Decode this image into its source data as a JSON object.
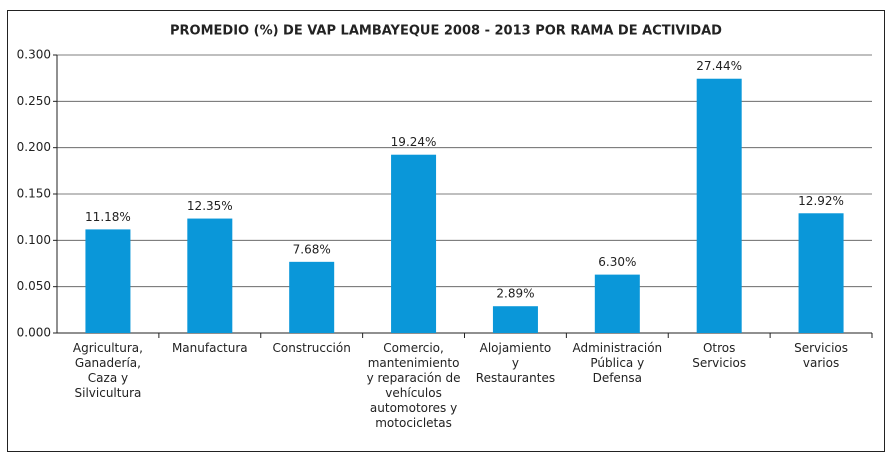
{
  "chart_data": {
    "type": "bar",
    "title": "PROMEDIO (%) DE VAP LAMBAYEQUE 2008 - 2013 POR RAMA DE ACTIVIDAD",
    "categories": [
      [
        "Agricultura,",
        "Ganadería,",
        "Caza y",
        "Silvicultura"
      ],
      [
        "Manufactura"
      ],
      [
        "Construcción"
      ],
      [
        "Comercio,",
        "mantenimiento",
        "y reparación de",
        "vehículos",
        "automotores y",
        "motocicletas"
      ],
      [
        "Alojamiento",
        "y",
        "Restaurantes"
      ],
      [
        "Administración",
        "Pública y",
        "Defensa"
      ],
      [
        "Otros",
        "Servicios"
      ],
      [
        "Servicios",
        "varios"
      ]
    ],
    "values": [
      0.1118,
      0.1235,
      0.0768,
      0.1924,
      0.0289,
      0.063,
      0.2744,
      0.1292
    ],
    "value_labels": [
      "11.18%",
      "12.35%",
      "7.68%",
      "19.24%",
      "2.89%",
      "6.30%",
      "27.44%",
      "12.92%"
    ],
    "color": "#0a97d9",
    "ylim": [
      0,
      0.3
    ],
    "yticks": [
      {
        "value": 0,
        "label": "0.000"
      },
      {
        "value": 0.05,
        "label": "0.050"
      },
      {
        "value": 0.1,
        "label": "0.100"
      },
      {
        "value": 0.15,
        "label": "0.150"
      },
      {
        "value": 0.2,
        "label": "0.200"
      },
      {
        "value": 0.25,
        "label": "0.250"
      },
      {
        "value": 0.3,
        "label": "0.300"
      }
    ],
    "grid": true
  }
}
